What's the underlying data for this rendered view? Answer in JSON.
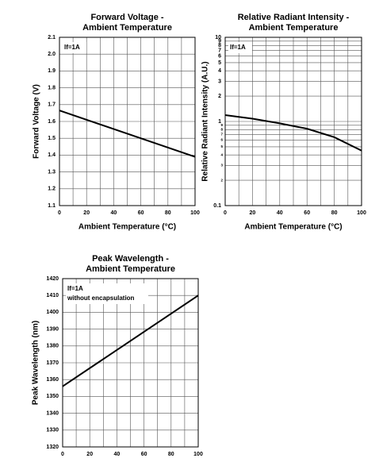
{
  "chart_data": [
    {
      "type": "line",
      "title": [
        "Forward Voltage -",
        "Ambient Temperature"
      ],
      "x_label": "Ambient Temperature (°C)",
      "y_label": "Forward Voltage (V)",
      "annotations": [
        "If=1A"
      ],
      "x": [
        0,
        100
      ],
      "values": [
        1.665,
        1.39
      ],
      "color": "#000000",
      "xlim": [
        0,
        100
      ],
      "xticks": [
        0,
        20,
        40,
        60,
        80,
        100
      ],
      "ylim": [
        1.1,
        2.1
      ],
      "yticks": [
        1.1,
        1.2,
        1.3,
        1.4,
        1.5,
        1.6,
        1.7,
        1.8,
        1.9,
        {
          "value": 2,
          "label": "2.0"
        },
        2.1
      ],
      "grid": true,
      "log_y": false
    },
    {
      "type": "line",
      "title": [
        "Relative Radiant Intensity -",
        "Ambient Temperature"
      ],
      "x_label": "Ambient Temperature (°C)",
      "y_label": "Relative Radiant Intensity (A.U.)",
      "annotations": [
        "If=1A"
      ],
      "x": [
        0,
        20,
        40,
        60,
        80,
        100
      ],
      "values": [
        1.19,
        1.08,
        0.95,
        0.82,
        0.65,
        0.45
      ],
      "color": "#000000",
      "xlim": [
        0,
        100
      ],
      "xticks": [
        0,
        20,
        40,
        60,
        80,
        100
      ],
      "ylim": [
        0.1,
        10
      ],
      "yticks": [
        0.1,
        {
          "value": 0.2,
          "label": "2"
        },
        {
          "value": 0.3,
          "label": "3"
        },
        {
          "value": 0.4,
          "label": "4"
        },
        {
          "value": 0.5,
          "label": "5"
        },
        {
          "value": 0.6,
          "label": "6"
        },
        {
          "value": 0.7,
          "label": "7"
        },
        {
          "value": 0.8,
          "label": "8"
        },
        {
          "value": 0.9,
          "label": "9"
        },
        1,
        2,
        3,
        4,
        5,
        6,
        7,
        8,
        9,
        10
      ],
      "grid": true,
      "log_y": true
    },
    {
      "type": "line",
      "title": [
        "Peak Wavelength -",
        "Ambient Temperature"
      ],
      "y_label": "Peak Wavelength (nm)",
      "annotations": [
        "If=1A",
        "without encapsulation"
      ],
      "x": [
        0,
        100
      ],
      "values": [
        1356,
        1410
      ],
      "color": "#000000",
      "xlim": [
        0,
        100
      ],
      "xticks": [
        0,
        20,
        40,
        60,
        80,
        100
      ],
      "ylim": [
        1320,
        1420
      ],
      "yticks": [
        1320,
        1330,
        1340,
        1350,
        1360,
        1370,
        1380,
        1390,
        1400,
        1410,
        1420
      ],
      "grid": true,
      "log_y": false
    }
  ]
}
